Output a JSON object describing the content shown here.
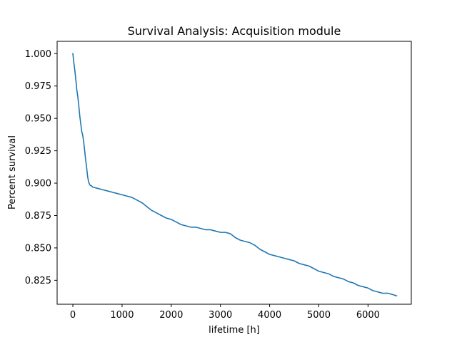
{
  "chart_data": {
    "type": "line",
    "title": "Survival Analysis: Acquisition module",
    "xlabel": "lifetime [h]",
    "ylabel": "Percent survival",
    "xlim": [
      -320,
      6880
    ],
    "ylim": [
      0.8065,
      1.0095
    ],
    "xticks": [
      0,
      1000,
      2000,
      3000,
      4000,
      5000,
      6000
    ],
    "xtick_labels": [
      "0",
      "1000",
      "2000",
      "3000",
      "4000",
      "5000",
      "6000"
    ],
    "yticks": [
      0.825,
      0.85,
      0.875,
      0.9,
      0.925,
      0.95,
      0.975,
      1.0
    ],
    "ytick_labels": [
      "0.825",
      "0.850",
      "0.875",
      "0.900",
      "0.925",
      "0.950",
      "0.975",
      "1.000"
    ],
    "grid": false,
    "legend": false,
    "colors": {
      "line": "#1f77b4"
    },
    "series": [
      {
        "x": [
          0,
          20,
          40,
          60,
          80,
          100,
          120,
          140,
          160,
          180,
          200,
          220,
          240,
          260,
          280,
          300,
          320,
          340,
          360,
          380,
          400,
          500,
          600,
          700,
          800,
          900,
          1000,
          1100,
          1200,
          1300,
          1400,
          1500,
          1600,
          1700,
          1800,
          1900,
          2000,
          2100,
          2200,
          2300,
          2400,
          2500,
          2600,
          2700,
          2800,
          2900,
          3000,
          3100,
          3200,
          3300,
          3400,
          3500,
          3600,
          3700,
          3800,
          3900,
          4000,
          4100,
          4200,
          4300,
          4400,
          4500,
          4600,
          4700,
          4800,
          4900,
          5000,
          5100,
          5200,
          5300,
          5400,
          5500,
          5600,
          5700,
          5800,
          5900,
          6000,
          6100,
          6200,
          6300,
          6400,
          6500,
          6580
        ],
        "y": [
          1.0,
          0.993,
          0.987,
          0.98,
          0.972,
          0.967,
          0.96,
          0.952,
          0.946,
          0.94,
          0.937,
          0.932,
          0.925,
          0.918,
          0.912,
          0.905,
          0.901,
          0.899,
          0.898,
          0.898,
          0.897,
          0.896,
          0.895,
          0.894,
          0.893,
          0.892,
          0.891,
          0.89,
          0.889,
          0.887,
          0.885,
          0.882,
          0.879,
          0.877,
          0.875,
          0.873,
          0.872,
          0.87,
          0.868,
          0.867,
          0.866,
          0.866,
          0.865,
          0.864,
          0.864,
          0.863,
          0.862,
          0.862,
          0.861,
          0.858,
          0.856,
          0.855,
          0.854,
          0.852,
          0.849,
          0.847,
          0.845,
          0.844,
          0.843,
          0.842,
          0.841,
          0.84,
          0.838,
          0.837,
          0.836,
          0.834,
          0.832,
          0.831,
          0.83,
          0.828,
          0.827,
          0.826,
          0.824,
          0.823,
          0.821,
          0.82,
          0.819,
          0.817,
          0.816,
          0.815,
          0.815,
          0.814,
          0.813
        ]
      }
    ]
  }
}
